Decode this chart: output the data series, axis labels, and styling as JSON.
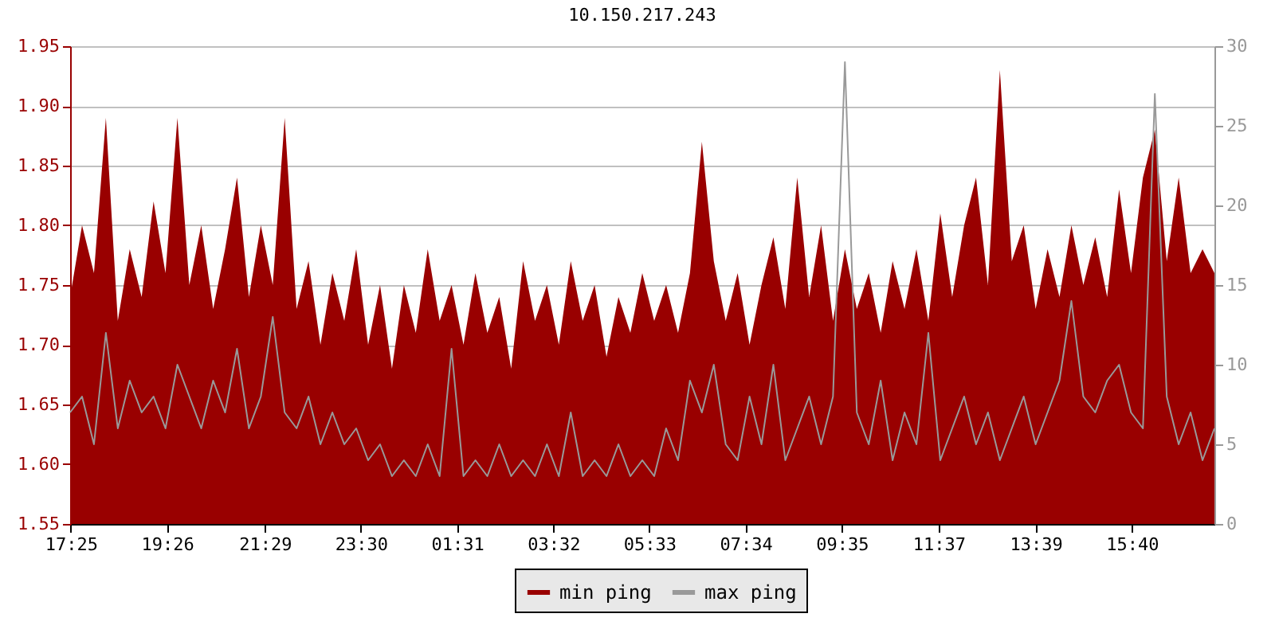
{
  "chart_data": {
    "type": "area",
    "title": "10.150.217.243",
    "x": [
      "--01-01T17:24",
      "--01-01T17:39",
      "--01-01T17:54",
      "--01-01T18:09",
      "--01-01T18:24",
      "--01-01T18:39",
      "--01-01T18:54",
      "--01-01T19:09",
      "--01-01T19:24",
      "--01-01T19:39",
      "--01-01T19:54",
      "--01-01T20:09",
      "--01-01T20:24",
      "--01-01T20:39",
      "--01-01T20:54",
      "--01-01T21:09",
      "--01-01T21:24",
      "--01-01T21:39",
      "--01-01T21:54",
      "--01-01T22:09",
      "--01-01T22:24",
      "--01-01T22:39",
      "--01-01T22:54",
      "--01-01T23:09",
      "--01-01T23:24",
      "--01-01T23:39",
      "--01-01T23:54",
      "--01-02T00:09",
      "--01-02T00:24",
      "--01-02T00:39",
      "--01-02T00:54",
      "--01-02T01:09",
      "--01-02T01:24",
      "--01-02T01:39",
      "--01-02T01:54",
      "--01-02T02:09",
      "--01-02T02:24",
      "--01-02T02:39",
      "--01-02T02:54",
      "--01-02T03:09",
      "--01-02T03:24",
      "--01-02T03:39",
      "--01-02T03:54",
      "--01-02T04:09",
      "--01-02T04:24",
      "--01-02T04:39",
      "--01-02T04:54",
      "--01-02T05:09",
      "--01-02T05:24",
      "--01-02T05:39",
      "--01-02T05:54",
      "--01-02T06:09",
      "--01-02T06:24",
      "--01-02T06:39",
      "--01-02T06:54",
      "--01-02T07:09",
      "--01-02T07:24",
      "--01-02T07:39",
      "--01-02T07:54",
      "--01-02T08:09",
      "--01-02T08:24",
      "--01-02T08:39",
      "--01-02T08:54",
      "--01-02T09:09",
      "--01-02T09:24",
      "--01-02T09:39",
      "--01-02T09:54",
      "--01-02T10:09",
      "--01-02T10:24",
      "--01-02T10:39",
      "--01-02T10:54",
      "--01-02T11:09",
      "--01-02T11:24",
      "--01-02T11:39",
      "--01-02T11:54",
      "--01-02T12:09",
      "--01-02T12:24",
      "--01-02T12:39",
      "--01-02T12:54",
      "--01-02T13:09",
      "--01-02T13:24",
      "--01-02T13:39",
      "--01-02T13:54",
      "--01-02T14:09",
      "--01-02T14:24",
      "--01-02T14:39",
      "--01-02T14:54",
      "--01-02T15:09",
      "--01-02T15:24",
      "--01-02T15:39",
      "--01-02T15:54",
      "--01-02T16:09",
      "--01-02T16:24",
      "--01-02T16:39",
      "--01-02T16:54",
      "--01-02T17:09",
      "--01-02T17:24"
    ],
    "series": [
      {
        "name": "min ping",
        "color": "#990000",
        "values": [
          1.74,
          1.8,
          1.76,
          1.89,
          1.72,
          1.78,
          1.74,
          1.82,
          1.76,
          1.89,
          1.75,
          1.8,
          1.73,
          1.78,
          1.84,
          1.74,
          1.8,
          1.75,
          1.89,
          1.73,
          1.77,
          1.7,
          1.76,
          1.72,
          1.78,
          1.7,
          1.75,
          1.68,
          1.75,
          1.71,
          1.78,
          1.72,
          1.75,
          1.7,
          1.76,
          1.71,
          1.74,
          1.68,
          1.77,
          1.72,
          1.75,
          1.7,
          1.77,
          1.72,
          1.75,
          1.69,
          1.74,
          1.71,
          1.76,
          1.72,
          1.75,
          1.71,
          1.76,
          1.87,
          1.77,
          1.72,
          1.76,
          1.7,
          1.75,
          1.79,
          1.73,
          1.84,
          1.74,
          1.8,
          1.72,
          1.78,
          1.73,
          1.76,
          1.71,
          1.77,
          1.73,
          1.78,
          1.72,
          1.81,
          1.74,
          1.8,
          1.84,
          1.75,
          1.93,
          1.77,
          1.8,
          1.73,
          1.78,
          1.74,
          1.8,
          1.75,
          1.79,
          1.74,
          1.83,
          1.76,
          1.84,
          1.88,
          1.77,
          1.84,
          1.76,
          1.78,
          1.76
        ]
      },
      {
        "name": "max ping",
        "type": "line",
        "axis": "y2",
        "color": "#999999",
        "values": [
          7,
          8,
          5,
          12,
          6,
          9,
          7,
          8,
          6,
          10,
          8,
          6,
          9,
          7,
          11,
          6,
          8,
          13,
          7,
          6,
          8,
          5,
          7,
          5,
          6,
          4,
          5,
          3,
          4,
          3,
          5,
          3,
          11,
          3,
          4,
          3,
          5,
          3,
          4,
          3,
          5,
          3,
          7,
          3,
          4,
          3,
          5,
          3,
          4,
          3,
          6,
          4,
          9,
          7,
          10,
          5,
          4,
          8,
          5,
          10,
          4,
          6,
          8,
          5,
          8,
          29,
          7,
          5,
          9,
          4,
          7,
          5,
          12,
          4,
          6,
          8,
          5,
          7,
          4,
          6,
          8,
          5,
          7,
          9,
          14,
          8,
          7,
          9,
          10,
          7,
          6,
          27,
          8,
          5,
          7,
          4,
          6
        ]
      }
    ],
    "xlim": [
      "--01-01T17:24",
      "--01-02T17:24"
    ],
    "xticks": [
      {
        "value": "--01-01T17:25",
        "label": "17:25"
      },
      {
        "value": "--01-01T19:26",
        "label": "19:26"
      },
      {
        "value": "--01-01T21:29",
        "label": "21:29"
      },
      {
        "value": "--01-01T23:30",
        "label": "23:30"
      },
      {
        "value": "--01-02T01:31",
        "label": "01:31"
      },
      {
        "value": "--01-02T03:32",
        "label": "03:32"
      },
      {
        "value": "--01-02T05:33",
        "label": "05:33"
      },
      {
        "value": "--01-02T07:34",
        "label": "07:34"
      },
      {
        "value": "--01-02T09:35",
        "label": "09:35"
      },
      {
        "value": "--01-02T11:37",
        "label": "11:37"
      },
      {
        "value": "--01-02T13:39",
        "label": "13:39"
      },
      {
        "value": "--01-02T15:40",
        "label": "15:40"
      }
    ],
    "ylim": [
      1.55,
      1.95
    ],
    "yticks": [
      {
        "value": 1.55,
        "label": "1.55"
      },
      {
        "value": 1.6,
        "label": "1.60"
      },
      {
        "value": 1.65,
        "label": "1.65"
      },
      {
        "value": 1.7,
        "label": "1.70"
      },
      {
        "value": 1.75,
        "label": "1.75"
      },
      {
        "value": 1.8,
        "label": "1.80"
      },
      {
        "value": 1.85,
        "label": "1.85"
      },
      {
        "value": 1.9,
        "label": "1.90"
      },
      {
        "value": 1.95,
        "label": "1.95"
      }
    ],
    "y2lim": [
      0,
      30
    ],
    "y2ticks": [
      0,
      5,
      10,
      15,
      20,
      25,
      30
    ],
    "grid": "y",
    "legend": "bottom"
  }
}
